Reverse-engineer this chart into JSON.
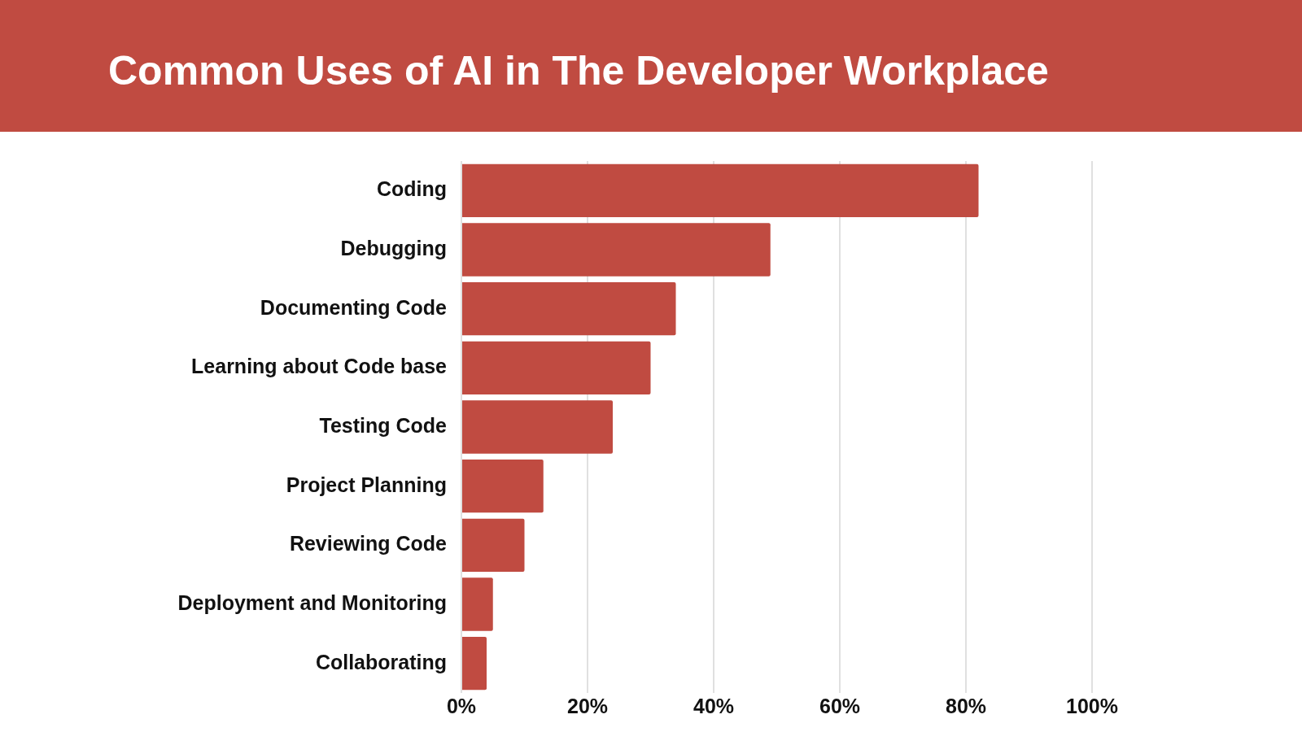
{
  "chart_data": {
    "type": "bar",
    "orientation": "horizontal",
    "title": "Common Uses of AI in The Developer Workplace",
    "categories": [
      "Coding",
      "Debugging",
      "Documenting Code",
      "Learning about Code base",
      "Testing Code",
      "Project Planning",
      "Reviewing Code",
      "Deployment and Monitoring",
      "Collaborating"
    ],
    "values": [
      82,
      49,
      34,
      30,
      24,
      13,
      10,
      5,
      4
    ],
    "color": "#c04b41",
    "xlim": [
      0,
      100
    ],
    "xticks": [
      {
        "value": 0,
        "label": "0%"
      },
      {
        "value": 20,
        "label": "20%"
      },
      {
        "value": 40,
        "label": "40%"
      },
      {
        "value": 60,
        "label": "60%"
      },
      {
        "value": 80,
        "label": "80%"
      },
      {
        "value": 100,
        "label": "100%"
      }
    ],
    "grid": "x",
    "legend": false
  }
}
